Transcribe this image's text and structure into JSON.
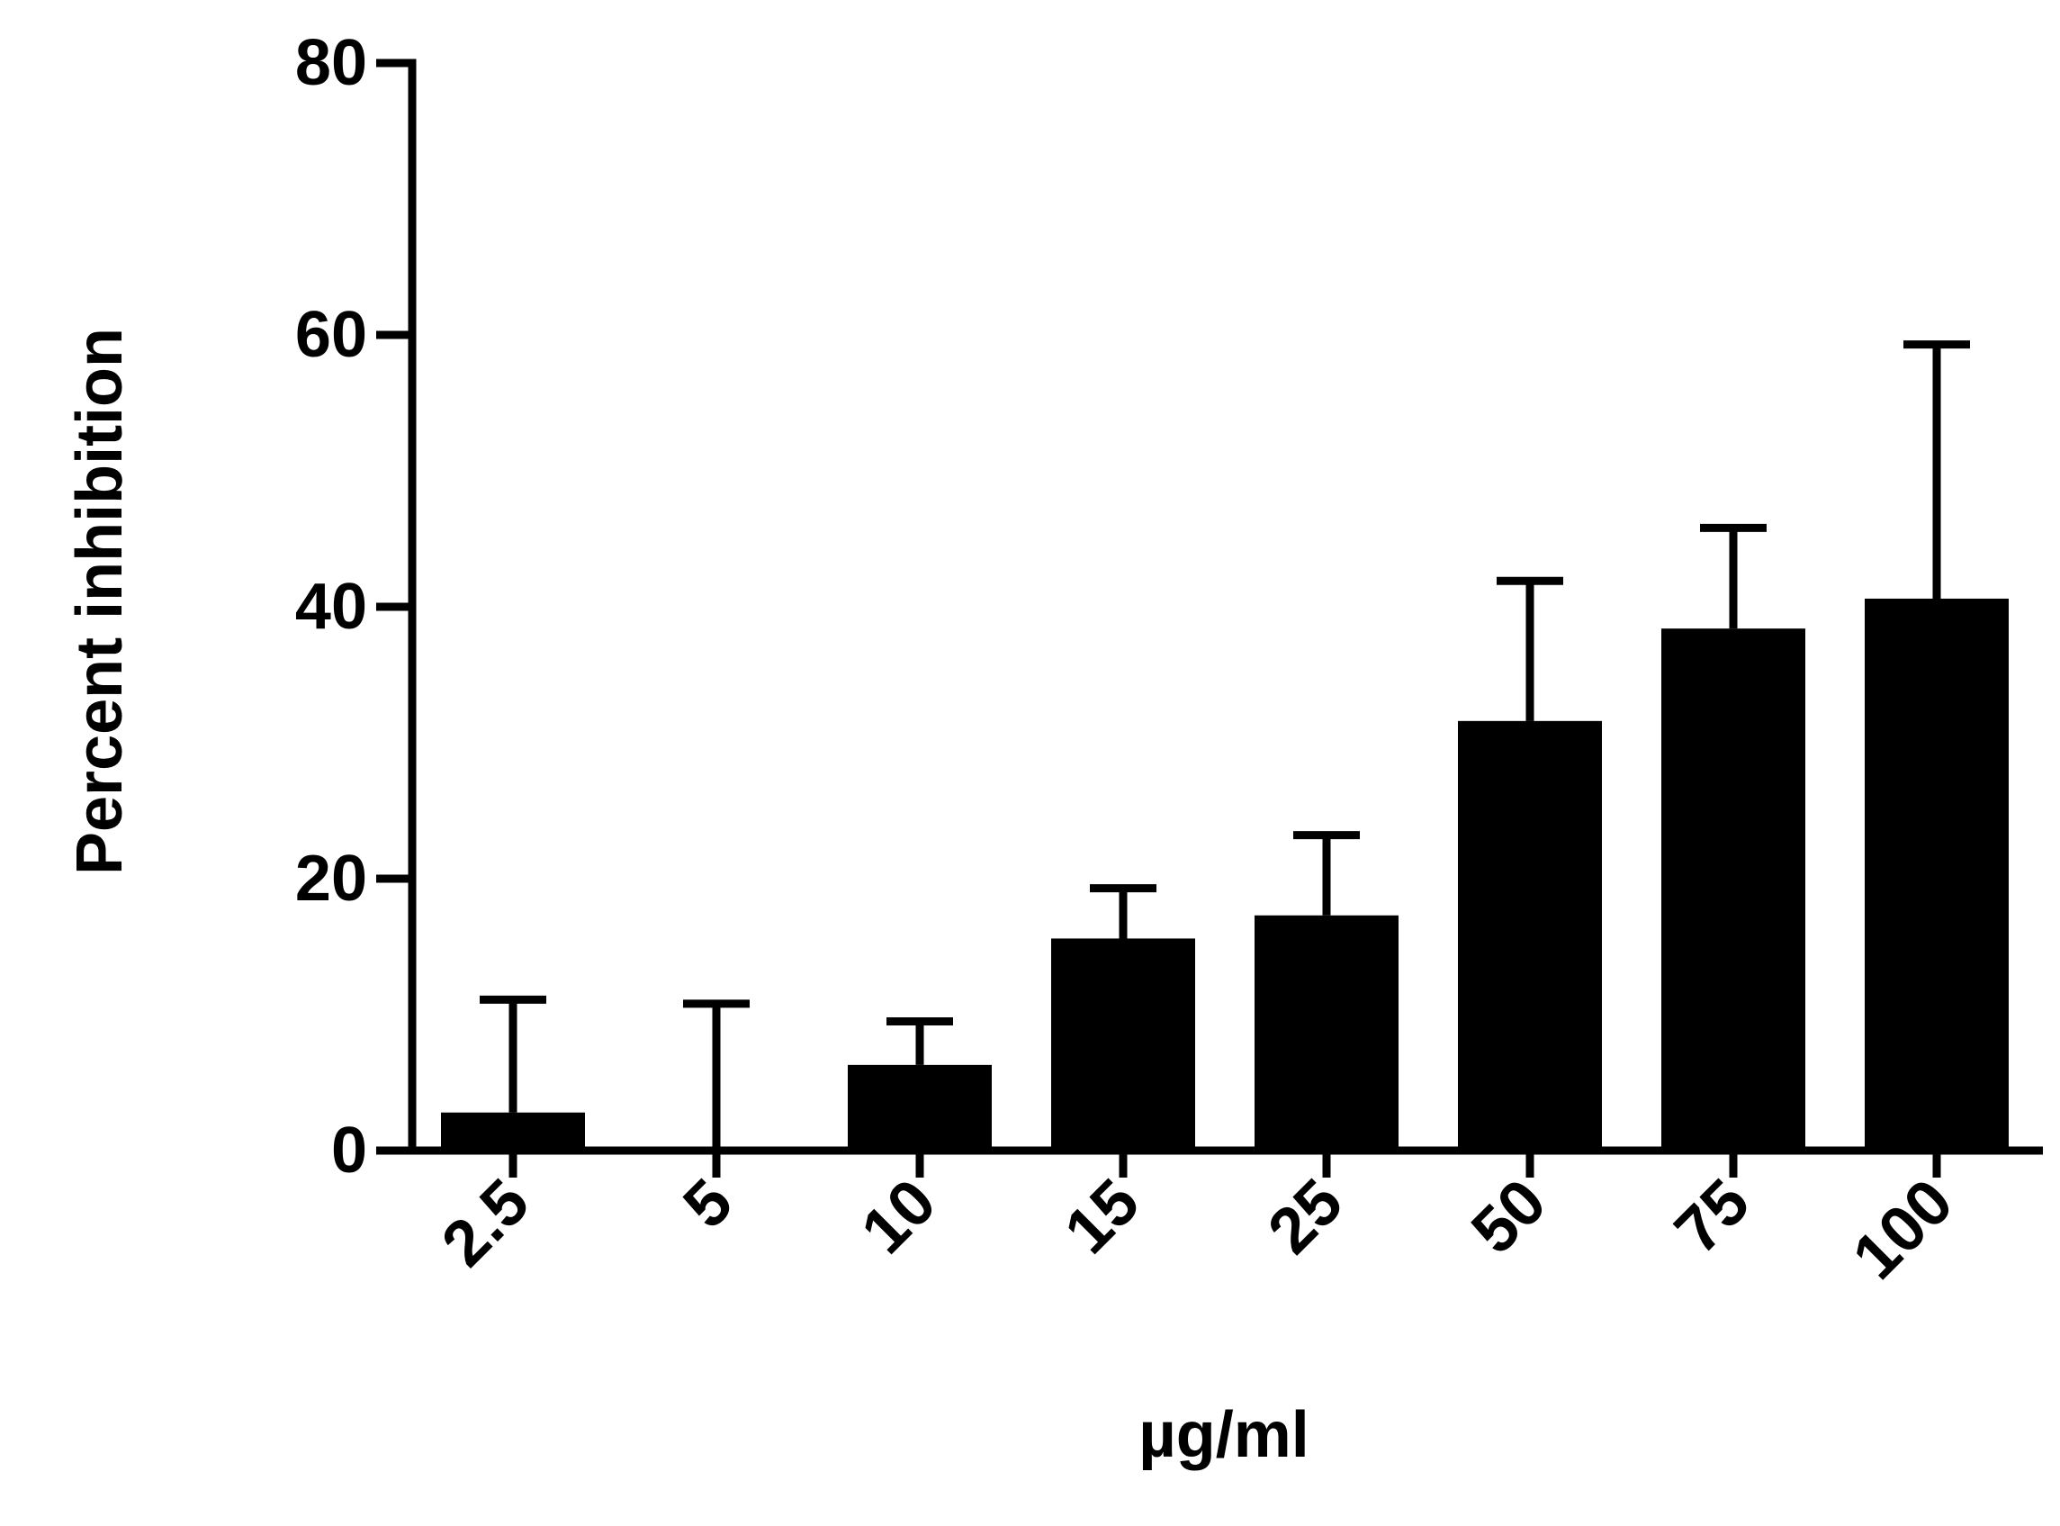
{
  "chart_data": {
    "type": "bar",
    "title": "",
    "xlabel": "µg/ml",
    "ylabel": "Percent inhibition",
    "categories": [
      "2.5",
      "5",
      "10",
      "15",
      "25",
      "50",
      "75",
      "100"
    ],
    "values": [
      2.8,
      0.2,
      6.3,
      15.6,
      17.3,
      31.6,
      38.4,
      40.6
    ],
    "error_upper": [
      11.1,
      10.8,
      9.5,
      19.3,
      23.2,
      41.9,
      45.8,
      59.3
    ],
    "ylim": [
      0,
      80
    ],
    "yticks": [
      0,
      20,
      40,
      60,
      80
    ],
    "grid": false,
    "legend": "none",
    "bar_color": "#000000"
  }
}
